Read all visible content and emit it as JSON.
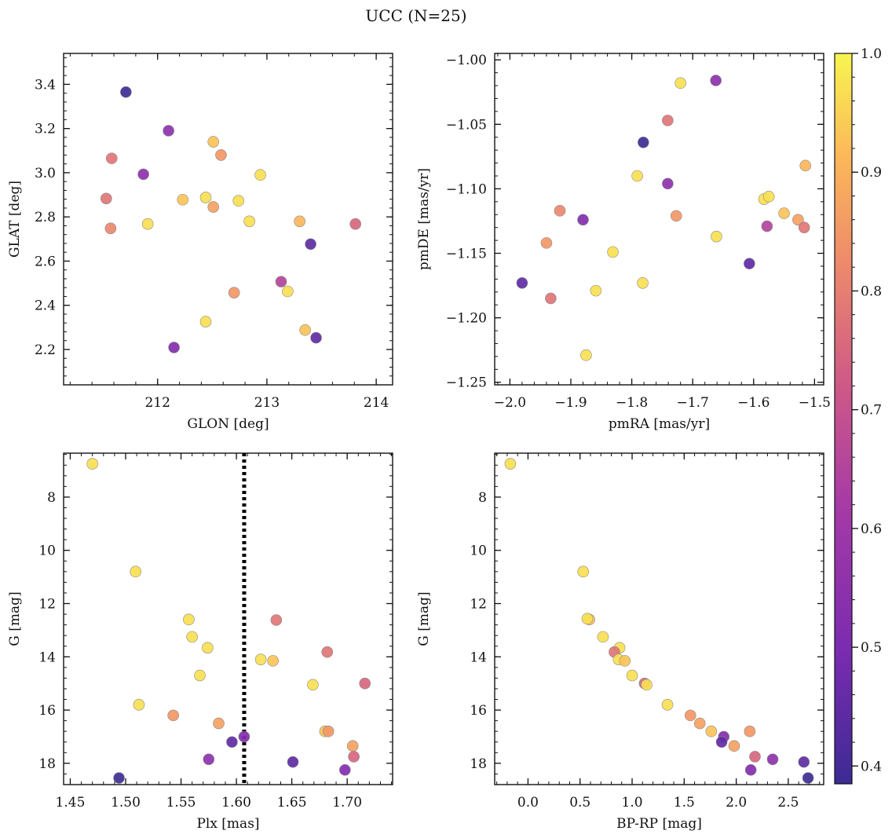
{
  "figure": {
    "title": "UCC (N=25)"
  },
  "colorbar": {
    "min": 0.385,
    "max": 1.0,
    "ticks": [
      0.4,
      0.5,
      0.6,
      0.7,
      0.8,
      0.9,
      1.0
    ],
    "tick_labels": [
      "0.4",
      "0.5",
      "0.6",
      "0.7",
      "0.8",
      "0.9",
      "1.0"
    ],
    "colormap": "plasma"
  },
  "chart_data": [
    {
      "type": "scatter",
      "xlabel": "GLON [deg]",
      "ylabel": "GLAT [deg]",
      "xlim": [
        211.14,
        214.15
      ],
      "ylim": [
        2.04,
        3.54
      ],
      "xticks": [
        212,
        213,
        214
      ],
      "xtick_labels": [
        "212",
        "213",
        "214"
      ],
      "yticks": [
        2.2,
        2.4,
        2.6,
        2.8,
        3.0,
        3.2,
        3.4
      ],
      "ytick_labels": [
        "2.2",
        "2.4",
        "2.6",
        "2.8",
        "3.0",
        "3.2",
        "3.4"
      ],
      "y_inverted": false,
      "points": [
        {
          "x": 211.71,
          "y": 3.365,
          "c": 0.39
        },
        {
          "x": 212.1,
          "y": 3.19,
          "c": 0.55
        },
        {
          "x": 212.51,
          "y": 3.14,
          "c": 0.93
        },
        {
          "x": 211.58,
          "y": 3.065,
          "c": 0.78
        },
        {
          "x": 212.58,
          "y": 3.08,
          "c": 0.85
        },
        {
          "x": 211.87,
          "y": 2.993,
          "c": 0.55
        },
        {
          "x": 212.94,
          "y": 2.99,
          "c": 0.97
        },
        {
          "x": 211.53,
          "y": 2.883,
          "c": 0.78
        },
        {
          "x": 212.23,
          "y": 2.878,
          "c": 0.93
        },
        {
          "x": 212.44,
          "y": 2.888,
          "c": 0.97
        },
        {
          "x": 212.74,
          "y": 2.873,
          "c": 0.97
        },
        {
          "x": 212.51,
          "y": 2.845,
          "c": 0.87
        },
        {
          "x": 211.91,
          "y": 2.768,
          "c": 0.97
        },
        {
          "x": 211.57,
          "y": 2.748,
          "c": 0.82
        },
        {
          "x": 212.84,
          "y": 2.78,
          "c": 0.97
        },
        {
          "x": 213.3,
          "y": 2.78,
          "c": 0.91
        },
        {
          "x": 213.81,
          "y": 2.768,
          "c": 0.75
        },
        {
          "x": 213.4,
          "y": 2.677,
          "c": 0.45
        },
        {
          "x": 213.13,
          "y": 2.507,
          "c": 0.65
        },
        {
          "x": 212.7,
          "y": 2.457,
          "c": 0.85
        },
        {
          "x": 213.19,
          "y": 2.463,
          "c": 0.97
        },
        {
          "x": 212.44,
          "y": 2.326,
          "c": 0.97
        },
        {
          "x": 213.35,
          "y": 2.288,
          "c": 0.93
        },
        {
          "x": 213.45,
          "y": 2.253,
          "c": 0.45
        },
        {
          "x": 212.15,
          "y": 2.209,
          "c": 0.52
        }
      ]
    },
    {
      "type": "scatter",
      "xlabel": "pmRA [mas/yr]",
      "ylabel": "pmDE [mas/yr]",
      "xlim": [
        -2.025,
        -1.485
      ],
      "ylim": [
        -1.252,
        -0.995
      ],
      "xticks": [
        -2.0,
        -1.9,
        -1.8,
        -1.7,
        -1.6,
        -1.5
      ],
      "xtick_labels": [
        "−2.0",
        "−1.9",
        "−1.8",
        "−1.7",
        "−1.6",
        "−1.5"
      ],
      "yticks": [
        -1.25,
        -1.2,
        -1.15,
        -1.1,
        -1.05,
        -1.0
      ],
      "ytick_labels": [
        "−1.25",
        "−1.20",
        "−1.15",
        "−1.10",
        "−1.05",
        "−1.00"
      ],
      "y_inverted": false,
      "points": [
        {
          "x": -1.662,
          "y": -1.016,
          "c": 0.55
        },
        {
          "x": -1.72,
          "y": -1.018,
          "c": 0.97
        },
        {
          "x": -1.741,
          "y": -1.047,
          "c": 0.78
        },
        {
          "x": -1.781,
          "y": -1.064,
          "c": 0.39
        },
        {
          "x": -1.515,
          "y": -1.082,
          "c": 0.91
        },
        {
          "x": -1.791,
          "y": -1.09,
          "c": 0.97
        },
        {
          "x": -1.741,
          "y": -1.096,
          "c": 0.55
        },
        {
          "x": -1.583,
          "y": -1.108,
          "c": 0.97
        },
        {
          "x": -1.575,
          "y": -1.106,
          "c": 0.97
        },
        {
          "x": -1.55,
          "y": -1.119,
          "c": 0.93
        },
        {
          "x": -1.918,
          "y": -1.117,
          "c": 0.82
        },
        {
          "x": -1.727,
          "y": -1.121,
          "c": 0.85
        },
        {
          "x": -1.527,
          "y": -1.124,
          "c": 0.87
        },
        {
          "x": -1.88,
          "y": -1.124,
          "c": 0.52
        },
        {
          "x": -1.578,
          "y": -1.129,
          "c": 0.65
        },
        {
          "x": -1.517,
          "y": -1.13,
          "c": 0.78
        },
        {
          "x": -1.661,
          "y": -1.137,
          "c": 0.97
        },
        {
          "x": -1.94,
          "y": -1.142,
          "c": 0.85
        },
        {
          "x": -1.831,
          "y": -1.149,
          "c": 0.97
        },
        {
          "x": -1.607,
          "y": -1.158,
          "c": 0.45
        },
        {
          "x": -1.98,
          "y": -1.173,
          "c": 0.45
        },
        {
          "x": -1.782,
          "y": -1.173,
          "c": 0.97
        },
        {
          "x": -1.859,
          "y": -1.179,
          "c": 0.97
        },
        {
          "x": -1.933,
          "y": -1.185,
          "c": 0.78
        },
        {
          "x": -1.875,
          "y": -1.229,
          "c": 0.97
        }
      ]
    },
    {
      "type": "scatter",
      "xlabel": "Plx [mas]",
      "ylabel": "G [mag]",
      "xlim": [
        1.444,
        1.741
      ],
      "ylim": [
        18.8,
        6.35
      ],
      "xticks": [
        1.45,
        1.5,
        1.55,
        1.6,
        1.65,
        1.7
      ],
      "xtick_labels": [
        "1.45",
        "1.50",
        "1.55",
        "1.60",
        "1.65",
        "1.70"
      ],
      "yticks": [
        8,
        10,
        12,
        14,
        16,
        18
      ],
      "ytick_labels": [
        "8",
        "10",
        "12",
        "14",
        "16",
        "18"
      ],
      "y_inverted": true,
      "vline": 1.607,
      "points": [
        {
          "x": 1.47,
          "y": 6.75,
          "c": 0.97
        },
        {
          "x": 1.509,
          "y": 10.8,
          "c": 0.97
        },
        {
          "x": 1.557,
          "y": 12.6,
          "c": 0.97
        },
        {
          "x": 1.636,
          "y": 12.62,
          "c": 0.78
        },
        {
          "x": 1.56,
          "y": 13.25,
          "c": 0.97
        },
        {
          "x": 1.574,
          "y": 13.66,
          "c": 0.97
        },
        {
          "x": 1.682,
          "y": 13.82,
          "c": 0.78
        },
        {
          "x": 1.622,
          "y": 14.1,
          "c": 0.97
        },
        {
          "x": 1.633,
          "y": 14.15,
          "c": 0.93
        },
        {
          "x": 1.567,
          "y": 14.7,
          "c": 0.97
        },
        {
          "x": 1.716,
          "y": 15.0,
          "c": 0.75
        },
        {
          "x": 1.669,
          "y": 15.05,
          "c": 0.97
        },
        {
          "x": 1.512,
          "y": 15.8,
          "c": 0.97
        },
        {
          "x": 1.543,
          "y": 16.2,
          "c": 0.85
        },
        {
          "x": 1.584,
          "y": 16.5,
          "c": 0.87
        },
        {
          "x": 1.68,
          "y": 16.8,
          "c": 0.93
        },
        {
          "x": 1.683,
          "y": 16.8,
          "c": 0.85
        },
        {
          "x": 1.607,
          "y": 17.0,
          "c": 0.52
        },
        {
          "x": 1.596,
          "y": 17.2,
          "c": 0.45
        },
        {
          "x": 1.705,
          "y": 17.35,
          "c": 0.87
        },
        {
          "x": 1.706,
          "y": 17.75,
          "c": 0.75
        },
        {
          "x": 1.575,
          "y": 17.85,
          "c": 0.55
        },
        {
          "x": 1.651,
          "y": 17.95,
          "c": 0.45
        },
        {
          "x": 1.698,
          "y": 18.25,
          "c": 0.52
        },
        {
          "x": 1.494,
          "y": 18.55,
          "c": 0.39
        }
      ]
    },
    {
      "type": "scatter",
      "xlabel": "BP-RP [mag]",
      "ylabel": "G [mag]",
      "xlim": [
        -0.32,
        2.84
      ],
      "ylim": [
        18.8,
        6.35
      ],
      "xticks": [
        0.0,
        0.5,
        1.0,
        1.5,
        2.0,
        2.5
      ],
      "xtick_labels": [
        "0.0",
        "0.5",
        "1.0",
        "1.5",
        "2.0",
        "2.5"
      ],
      "yticks": [
        8,
        10,
        12,
        14,
        16,
        18
      ],
      "ytick_labels": [
        "8",
        "10",
        "12",
        "14",
        "16",
        "18"
      ],
      "y_inverted": true,
      "points": [
        {
          "x": -0.17,
          "y": 6.75,
          "c": 0.97
        },
        {
          "x": 0.53,
          "y": 10.8,
          "c": 0.97
        },
        {
          "x": 0.59,
          "y": 12.6,
          "c": 0.93
        },
        {
          "x": 0.57,
          "y": 12.57,
          "c": 0.97
        },
        {
          "x": 0.72,
          "y": 13.25,
          "c": 0.97
        },
        {
          "x": 0.88,
          "y": 13.66,
          "c": 0.97
        },
        {
          "x": 0.83,
          "y": 13.82,
          "c": 0.78
        },
        {
          "x": 0.87,
          "y": 14.1,
          "c": 0.97
        },
        {
          "x": 0.93,
          "y": 14.15,
          "c": 0.93
        },
        {
          "x": 1.0,
          "y": 14.7,
          "c": 0.97
        },
        {
          "x": 1.12,
          "y": 15.0,
          "c": 0.75
        },
        {
          "x": 1.14,
          "y": 15.05,
          "c": 0.97
        },
        {
          "x": 1.34,
          "y": 15.8,
          "c": 0.97
        },
        {
          "x": 1.56,
          "y": 16.2,
          "c": 0.85
        },
        {
          "x": 1.65,
          "y": 16.5,
          "c": 0.87
        },
        {
          "x": 1.76,
          "y": 16.8,
          "c": 0.93
        },
        {
          "x": 2.13,
          "y": 16.8,
          "c": 0.85
        },
        {
          "x": 1.88,
          "y": 17.0,
          "c": 0.52
        },
        {
          "x": 1.86,
          "y": 17.2,
          "c": 0.45
        },
        {
          "x": 1.98,
          "y": 17.35,
          "c": 0.87
        },
        {
          "x": 2.18,
          "y": 17.75,
          "c": 0.75
        },
        {
          "x": 2.35,
          "y": 17.85,
          "c": 0.55
        },
        {
          "x": 2.65,
          "y": 17.95,
          "c": 0.45
        },
        {
          "x": 2.14,
          "y": 18.25,
          "c": 0.52
        },
        {
          "x": 2.69,
          "y": 18.55,
          "c": 0.39
        }
      ]
    }
  ]
}
